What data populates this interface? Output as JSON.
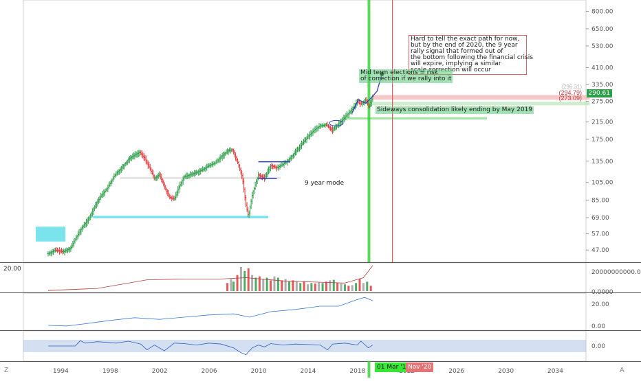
{
  "chart_data": [
    {
      "type": "candlestick",
      "panel": "price",
      "scale": "log",
      "ylim": [
        42,
        900
      ],
      "xlim": [
        1991.0,
        2036.5
      ],
      "y_ticks": [
        "800.00",
        "650.00",
        "530.00",
        "410.00",
        "335.00",
        "275.00",
        "215.00",
        "175.00",
        "135.00",
        "105.00",
        "85.00",
        "69.00",
        "57.00",
        "47.00"
      ],
      "x_ticks": [
        "1994",
        "1998",
        "2002",
        "2006",
        "2010",
        "2014",
        "2018",
        "2022",
        "2026",
        "2030",
        "2034"
      ],
      "last_price": "290.61",
      "level_labels": [
        "(294.79)",
        "(273.09)",
        "(296.31)"
      ],
      "price_path": [
        [
          1993.0,
          45
        ],
        [
          1993.6,
          47
        ],
        [
          1994.2,
          46
        ],
        [
          1994.8,
          48
        ],
        [
          1995.3,
          55
        ],
        [
          1995.8,
          62
        ],
        [
          1996.3,
          68
        ],
        [
          1996.8,
          80
        ],
        [
          1997.3,
          90
        ],
        [
          1997.8,
          98
        ],
        [
          1998.3,
          112
        ],
        [
          1998.7,
          120
        ],
        [
          1999.2,
          130
        ],
        [
          1999.6,
          140
        ],
        [
          2000.0,
          145
        ],
        [
          2000.4,
          150
        ],
        [
          2000.8,
          140
        ],
        [
          2001.2,
          125
        ],
        [
          2001.6,
          110
        ],
        [
          2002.0,
          115
        ],
        [
          2002.4,
          100
        ],
        [
          2002.8,
          88
        ],
        [
          2003.2,
          86
        ],
        [
          2003.6,
          100
        ],
        [
          2004.0,
          112
        ],
        [
          2004.5,
          115
        ],
        [
          2005.0,
          118
        ],
        [
          2005.5,
          122
        ],
        [
          2006.0,
          128
        ],
        [
          2006.5,
          132
        ],
        [
          2007.0,
          142
        ],
        [
          2007.5,
          152
        ],
        [
          2007.9,
          155
        ],
        [
          2008.3,
          135
        ],
        [
          2008.7,
          112
        ],
        [
          2009.0,
          80
        ],
        [
          2009.2,
          70
        ],
        [
          2009.5,
          90
        ],
        [
          2010.0,
          115
        ],
        [
          2010.5,
          110
        ],
        [
          2011.0,
          128
        ],
        [
          2011.5,
          125
        ],
        [
          2012.0,
          130
        ],
        [
          2012.5,
          138
        ],
        [
          2013.0,
          150
        ],
        [
          2013.5,
          165
        ],
        [
          2014.0,
          180
        ],
        [
          2014.5,
          195
        ],
        [
          2015.0,
          205
        ],
        [
          2015.5,
          208
        ],
        [
          2016.0,
          195
        ],
        [
          2016.5,
          210
        ],
        [
          2017.0,
          228
        ],
        [
          2017.5,
          245
        ],
        [
          2018.0,
          275
        ],
        [
          2018.3,
          265
        ],
        [
          2018.7,
          280
        ],
        [
          2018.95,
          255
        ],
        [
          2019.1,
          272
        ],
        [
          2019.25,
          290.61
        ]
      ],
      "support_zones": [
        {
          "from": 1992.0,
          "to": 1994.4,
          "low": 52,
          "high": 62,
          "color": "#4dd9e6"
        },
        {
          "from": 1996.6,
          "to": 2010.8,
          "low": 68.5,
          "high": 70.5,
          "color": "#4dd9e6"
        },
        {
          "from": 1998.8,
          "to": 2011.8,
          "low": 109,
          "high": 112,
          "color": "#dddddd"
        },
        {
          "from": 2016.8,
          "to": 2028.5,
          "low": 222,
          "high": 227,
          "color": "#7ddf7d"
        },
        {
          "from": 2019.2,
          "to": 2036.8,
          "low": 280,
          "high": 296,
          "color": "#f3b5b5"
        },
        {
          "from": 2019.2,
          "to": 2036.8,
          "low": 262,
          "high": 273,
          "color": "#bfe6bf"
        }
      ],
      "vertical_markers": [
        {
          "x": 2018.95,
          "color": "#32d132",
          "label": "01 Mar '19"
        },
        {
          "x": 2020.85,
          "color": "#e04545",
          "label": "Nov '20"
        }
      ],
      "annotations": [
        "Hard to tell the exact path for now,\nbut by the end of 2020, the 9 year\nrally signal that formed out of\nthe bottom following the financial crisis\nwill expire, implying a similar\nscale correction will occur",
        "Mid term elections = risk\nof correction if we rally into it",
        "Sideways consolidation likely ending by May 2019",
        "9 year mode"
      ],
      "colors": {
        "up": "#2e9e4a",
        "down": "#e03b3b",
        "grid": "#f0f0f0"
      }
    },
    {
      "type": "bar",
      "panel": "volume",
      "y_tick_top": "20000000000.0000",
      "y_tick_bottom": "0.0000",
      "left_label": "20.00",
      "x": [
        2007.5,
        2007.8,
        2008.0,
        2008.3,
        2008.6,
        2008.9,
        2009.2,
        2009.5,
        2009.8,
        2010.1,
        2010.4,
        2010.7,
        2011.0,
        2011.3,
        2011.6,
        2011.9,
        2012.2,
        2012.5,
        2012.8,
        2013.1,
        2013.4,
        2013.7,
        2014.0,
        2014.3,
        2014.6,
        2014.9,
        2015.2,
        2015.5,
        2015.8,
        2016.1,
        2016.4,
        2016.7,
        2017.0,
        2017.3,
        2017.6,
        2017.9,
        2018.2,
        2018.5,
        2018.8,
        2019.1
      ],
      "values": [
        0.3,
        0.45,
        0.35,
        0.6,
        0.9,
        0.75,
        0.85,
        0.6,
        0.5,
        0.55,
        0.45,
        0.5,
        0.4,
        0.55,
        0.5,
        0.4,
        0.45,
        0.35,
        0.4,
        0.35,
        0.3,
        0.35,
        0.25,
        0.3,
        0.28,
        0.32,
        0.3,
        0.35,
        0.4,
        0.42,
        0.3,
        0.28,
        0.25,
        0.2,
        0.22,
        0.3,
        0.45,
        0.3,
        0.35,
        0.2
      ],
      "ma_path": [
        [
          1993.0,
          0.02
        ],
        [
          1997.0,
          0.1
        ],
        [
          2001.0,
          0.42
        ],
        [
          2004.0,
          0.45
        ],
        [
          2007.0,
          0.45
        ],
        [
          2009.0,
          0.5
        ],
        [
          2012.0,
          0.38
        ],
        [
          2015.0,
          0.33
        ],
        [
          2017.0,
          0.3
        ],
        [
          2018.5,
          0.5
        ],
        [
          2019.25,
          0.95
        ]
      ]
    },
    {
      "type": "line",
      "panel": "indicator1",
      "y_ticks": [
        "20.00",
        "0.00"
      ],
      "path": [
        [
          1993.0,
          0.5
        ],
        [
          1994.5,
          0
        ],
        [
          1996.0,
          2
        ],
        [
          1998.0,
          5
        ],
        [
          2000.0,
          7.5
        ],
        [
          2002.0,
          6
        ],
        [
          2004.0,
          8
        ],
        [
          2006.0,
          10
        ],
        [
          2008.0,
          11
        ],
        [
          2009.3,
          8
        ],
        [
          2011.0,
          13
        ],
        [
          2013.0,
          15
        ],
        [
          2015.0,
          18
        ],
        [
          2016.5,
          18
        ],
        [
          2018.0,
          24
        ],
        [
          2018.6,
          26
        ],
        [
          2019.25,
          23
        ]
      ]
    },
    {
      "type": "line",
      "panel": "indicator2",
      "y_ticks": [
        "0.00"
      ],
      "path": [
        [
          1993.0,
          0.0
        ],
        [
          1995.2,
          0.0
        ],
        [
          1995.6,
          0.55
        ],
        [
          1996.0,
          0.3
        ],
        [
          1997.0,
          0.45
        ],
        [
          1998.5,
          0.3
        ],
        [
          1999.5,
          0.5
        ],
        [
          2000.5,
          0.2
        ],
        [
          2001.0,
          -0.4
        ],
        [
          2001.6,
          0.1
        ],
        [
          2002.4,
          -0.5
        ],
        [
          2003.2,
          0.3
        ],
        [
          2004.0,
          0.25
        ],
        [
          2005.0,
          0.1
        ],
        [
          2006.0,
          0.3
        ],
        [
          2007.0,
          0.2
        ],
        [
          2008.0,
          -0.2
        ],
        [
          2008.6,
          -0.7
        ],
        [
          2009.0,
          -0.9
        ],
        [
          2009.5,
          -0.2
        ],
        [
          2010.0,
          0.1
        ],
        [
          2010.5,
          -0.1
        ],
        [
          2011.0,
          0.25
        ],
        [
          2012.0,
          0.1
        ],
        [
          2013.0,
          0.2
        ],
        [
          2014.0,
          0.15
        ],
        [
          2015.0,
          0.1
        ],
        [
          2015.6,
          -0.4
        ],
        [
          2016.0,
          0.2
        ],
        [
          2017.0,
          0.3
        ],
        [
          2018.0,
          0.1
        ],
        [
          2018.3,
          0.5
        ],
        [
          2018.9,
          -0.2
        ],
        [
          2019.25,
          0.1
        ]
      ]
    }
  ],
  "ui": {
    "z_button": "Z",
    "a_button": "A"
  }
}
